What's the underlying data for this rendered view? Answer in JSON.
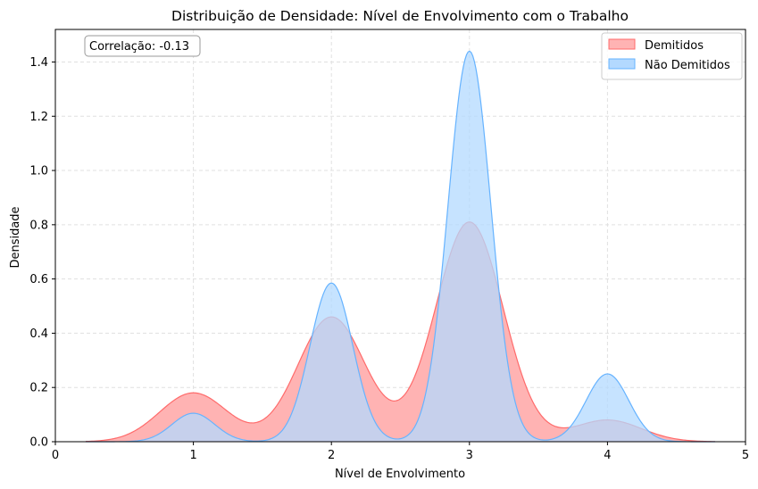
{
  "chart_data": {
    "type": "area",
    "title": "Distribuição de Densidade: Nível de Envolvimento com o Trabalho",
    "xlabel": "Nível de Envolvimento",
    "ylabel": "Densidade",
    "xlim": [
      0,
      5
    ],
    "ylim": [
      0,
      1.52
    ],
    "xticks": [
      "0",
      "1",
      "2",
      "3",
      "4",
      "5"
    ],
    "yticks": [
      "0.0",
      "0.2",
      "0.4",
      "0.6",
      "0.8",
      "1.0",
      "1.2",
      "1.4"
    ],
    "grid": true,
    "legend_position": "top-right",
    "annotation": "Correlação: -0.13",
    "series": [
      {
        "name": "Demitidos",
        "color": "#ff6b6b",
        "fill": "#ffb3b3",
        "x_range": [
          0.22,
          4.78
        ],
        "peaks": [
          {
            "x": 1.0,
            "y": 0.18
          },
          {
            "x": 2.0,
            "y": 0.46
          },
          {
            "x": 3.0,
            "y": 0.81
          },
          {
            "x": 4.0,
            "y": 0.08
          }
        ],
        "points": [
          [
            0.22,
            0.0
          ],
          [
            0.5,
            0.02
          ],
          [
            0.75,
            0.11
          ],
          [
            1.0,
            0.18
          ],
          [
            1.25,
            0.13
          ],
          [
            1.45,
            0.085
          ],
          [
            1.7,
            0.2
          ],
          [
            2.0,
            0.46
          ],
          [
            2.3,
            0.33
          ],
          [
            2.45,
            0.19
          ],
          [
            2.6,
            0.3
          ],
          [
            3.0,
            0.81
          ],
          [
            3.3,
            0.4
          ],
          [
            3.6,
            0.07
          ],
          [
            4.0,
            0.08
          ],
          [
            4.3,
            0.05
          ],
          [
            4.78,
            0.0
          ]
        ]
      },
      {
        "name": "Não Demitidos",
        "color": "#66b3ff",
        "fill": "#b3d9ff",
        "x_range": [
          0.22,
          4.78
        ],
        "peaks": [
          {
            "x": 1.0,
            "y": 0.105
          },
          {
            "x": 2.0,
            "y": 0.585
          },
          {
            "x": 3.0,
            "y": 1.44
          },
          {
            "x": 4.0,
            "y": 0.25
          }
        ],
        "points": [
          [
            0.22,
            0.0
          ],
          [
            1.0,
            0.105
          ],
          [
            1.5,
            0.005
          ],
          [
            2.0,
            0.585
          ],
          [
            2.5,
            0.01
          ],
          [
            3.0,
            1.44
          ],
          [
            3.5,
            0.01
          ],
          [
            4.0,
            0.25
          ],
          [
            4.78,
            0.0
          ]
        ]
      }
    ]
  }
}
